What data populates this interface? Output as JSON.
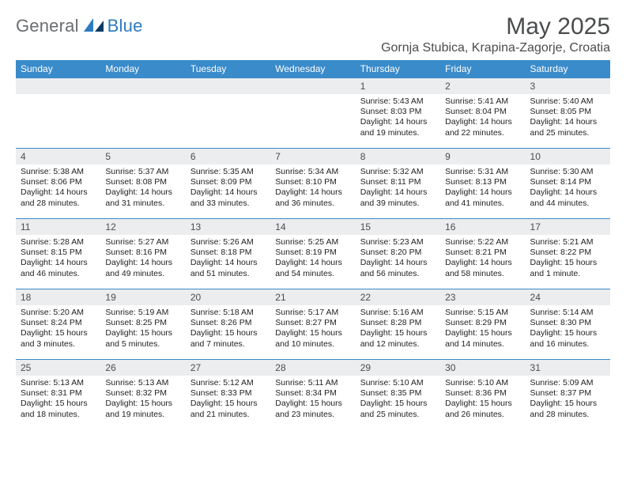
{
  "brand": {
    "word1": "General",
    "word2": "Blue"
  },
  "title": "May 2025",
  "location": "Gornja Stubica, Krapina-Zagorje, Croatia",
  "colors": {
    "header_bg": "#3a8bca",
    "header_text": "#ffffff",
    "daynum_bg": "#ebedee",
    "text": "#222222",
    "rule": "#3a8bca",
    "brand_gray": "#6a6d70",
    "brand_blue": "#2d7bc0"
  },
  "dow": [
    "Sunday",
    "Monday",
    "Tuesday",
    "Wednesday",
    "Thursday",
    "Friday",
    "Saturday"
  ],
  "weeks": [
    [
      null,
      null,
      null,
      null,
      {
        "n": "1",
        "sr": "5:43 AM",
        "ss": "8:03 PM",
        "dl": "14 hours and 19 minutes."
      },
      {
        "n": "2",
        "sr": "5:41 AM",
        "ss": "8:04 PM",
        "dl": "14 hours and 22 minutes."
      },
      {
        "n": "3",
        "sr": "5:40 AM",
        "ss": "8:05 PM",
        "dl": "14 hours and 25 minutes."
      }
    ],
    [
      {
        "n": "4",
        "sr": "5:38 AM",
        "ss": "8:06 PM",
        "dl": "14 hours and 28 minutes."
      },
      {
        "n": "5",
        "sr": "5:37 AM",
        "ss": "8:08 PM",
        "dl": "14 hours and 31 minutes."
      },
      {
        "n": "6",
        "sr": "5:35 AM",
        "ss": "8:09 PM",
        "dl": "14 hours and 33 minutes."
      },
      {
        "n": "7",
        "sr": "5:34 AM",
        "ss": "8:10 PM",
        "dl": "14 hours and 36 minutes."
      },
      {
        "n": "8",
        "sr": "5:32 AM",
        "ss": "8:11 PM",
        "dl": "14 hours and 39 minutes."
      },
      {
        "n": "9",
        "sr": "5:31 AM",
        "ss": "8:13 PM",
        "dl": "14 hours and 41 minutes."
      },
      {
        "n": "10",
        "sr": "5:30 AM",
        "ss": "8:14 PM",
        "dl": "14 hours and 44 minutes."
      }
    ],
    [
      {
        "n": "11",
        "sr": "5:28 AM",
        "ss": "8:15 PM",
        "dl": "14 hours and 46 minutes."
      },
      {
        "n": "12",
        "sr": "5:27 AM",
        "ss": "8:16 PM",
        "dl": "14 hours and 49 minutes."
      },
      {
        "n": "13",
        "sr": "5:26 AM",
        "ss": "8:18 PM",
        "dl": "14 hours and 51 minutes."
      },
      {
        "n": "14",
        "sr": "5:25 AM",
        "ss": "8:19 PM",
        "dl": "14 hours and 54 minutes."
      },
      {
        "n": "15",
        "sr": "5:23 AM",
        "ss": "8:20 PM",
        "dl": "14 hours and 56 minutes."
      },
      {
        "n": "16",
        "sr": "5:22 AM",
        "ss": "8:21 PM",
        "dl": "14 hours and 58 minutes."
      },
      {
        "n": "17",
        "sr": "5:21 AM",
        "ss": "8:22 PM",
        "dl": "15 hours and 1 minute."
      }
    ],
    [
      {
        "n": "18",
        "sr": "5:20 AM",
        "ss": "8:24 PM",
        "dl": "15 hours and 3 minutes."
      },
      {
        "n": "19",
        "sr": "5:19 AM",
        "ss": "8:25 PM",
        "dl": "15 hours and 5 minutes."
      },
      {
        "n": "20",
        "sr": "5:18 AM",
        "ss": "8:26 PM",
        "dl": "15 hours and 7 minutes."
      },
      {
        "n": "21",
        "sr": "5:17 AM",
        "ss": "8:27 PM",
        "dl": "15 hours and 10 minutes."
      },
      {
        "n": "22",
        "sr": "5:16 AM",
        "ss": "8:28 PM",
        "dl": "15 hours and 12 minutes."
      },
      {
        "n": "23",
        "sr": "5:15 AM",
        "ss": "8:29 PM",
        "dl": "15 hours and 14 minutes."
      },
      {
        "n": "24",
        "sr": "5:14 AM",
        "ss": "8:30 PM",
        "dl": "15 hours and 16 minutes."
      }
    ],
    [
      {
        "n": "25",
        "sr": "5:13 AM",
        "ss": "8:31 PM",
        "dl": "15 hours and 18 minutes."
      },
      {
        "n": "26",
        "sr": "5:13 AM",
        "ss": "8:32 PM",
        "dl": "15 hours and 19 minutes."
      },
      {
        "n": "27",
        "sr": "5:12 AM",
        "ss": "8:33 PM",
        "dl": "15 hours and 21 minutes."
      },
      {
        "n": "28",
        "sr": "5:11 AM",
        "ss": "8:34 PM",
        "dl": "15 hours and 23 minutes."
      },
      {
        "n": "29",
        "sr": "5:10 AM",
        "ss": "8:35 PM",
        "dl": "15 hours and 25 minutes."
      },
      {
        "n": "30",
        "sr": "5:10 AM",
        "ss": "8:36 PM",
        "dl": "15 hours and 26 minutes."
      },
      {
        "n": "31",
        "sr": "5:09 AM",
        "ss": "8:37 PM",
        "dl": "15 hours and 28 minutes."
      }
    ]
  ],
  "labels": {
    "sunrise": "Sunrise:",
    "sunset": "Sunset:",
    "daylight": "Daylight:"
  }
}
